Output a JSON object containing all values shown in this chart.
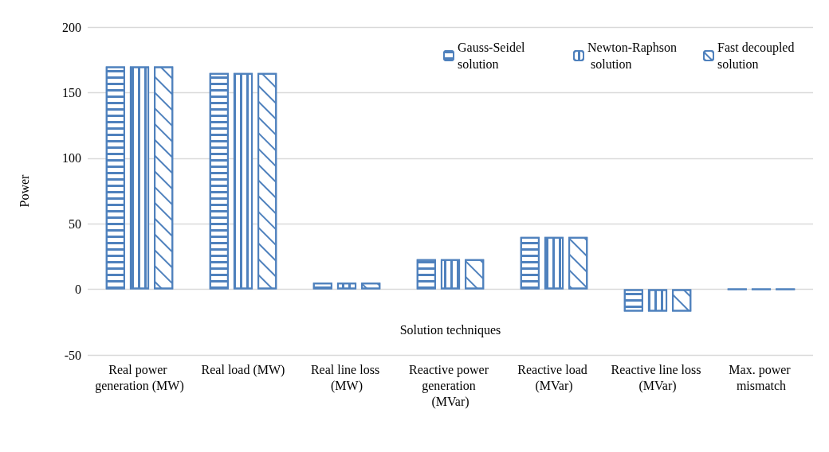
{
  "chart_data": {
    "type": "bar",
    "xlabel": "Solution techniques",
    "ylabel": "Power",
    "categories": [
      "Real power generation (MW)",
      "Real load (MW)",
      "Real line loss (MW)",
      "Reactive power generation (MVar)",
      "Reactive load (MVar)",
      "Reactive line loss (MVar)",
      "Max. power mismatch"
    ],
    "series": [
      {
        "name": "Gauss-Seidel solution",
        "color": "#4f81bd",
        "values": [
          170,
          165,
          5,
          23,
          40,
          -17,
          0
        ]
      },
      {
        "name": "Newton-Raphson solution",
        "color": "#4f81bd",
        "values": [
          170,
          165,
          5,
          23,
          40,
          -17,
          0
        ]
      },
      {
        "name": "Fast decoupled solution",
        "color": "#4f81bd",
        "values": [
          170,
          165,
          5,
          23,
          40,
          -17,
          0
        ]
      }
    ],
    "ylim": [
      -50,
      200
    ],
    "yticks": [
      -50,
      0,
      50,
      100,
      150,
      200
    ],
    "grid": "y",
    "legend": "top right"
  }
}
